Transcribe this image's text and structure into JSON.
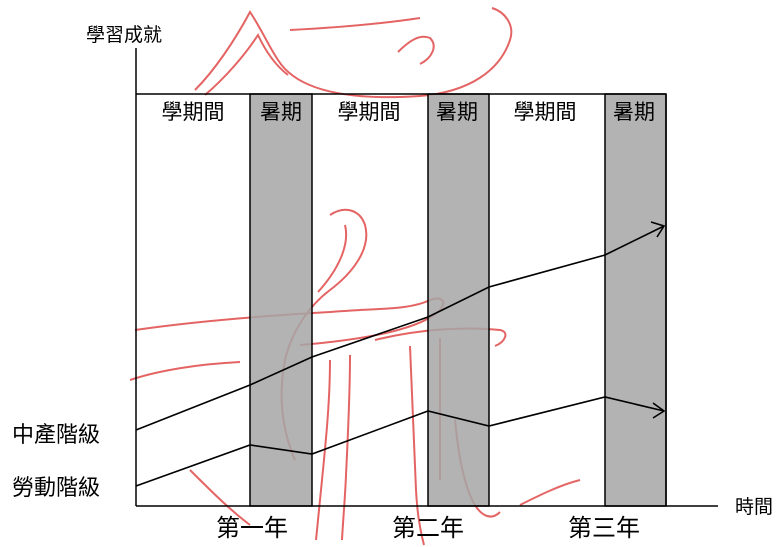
{
  "diagram": {
    "y_axis_label": "學習成就",
    "x_axis_label": "時間",
    "periods": [
      "學期間",
      "暑期",
      "學期間",
      "暑期",
      "學期間",
      "暑期"
    ],
    "years": [
      "第一年",
      "第二年",
      "第三年"
    ],
    "series": [
      {
        "name": "中產階級"
      },
      {
        "name": "勞動階級"
      }
    ],
    "colors": {
      "summer_band": "#a6a6a6",
      "line": "#000000",
      "watermark": "#e04a4a"
    }
  }
}
